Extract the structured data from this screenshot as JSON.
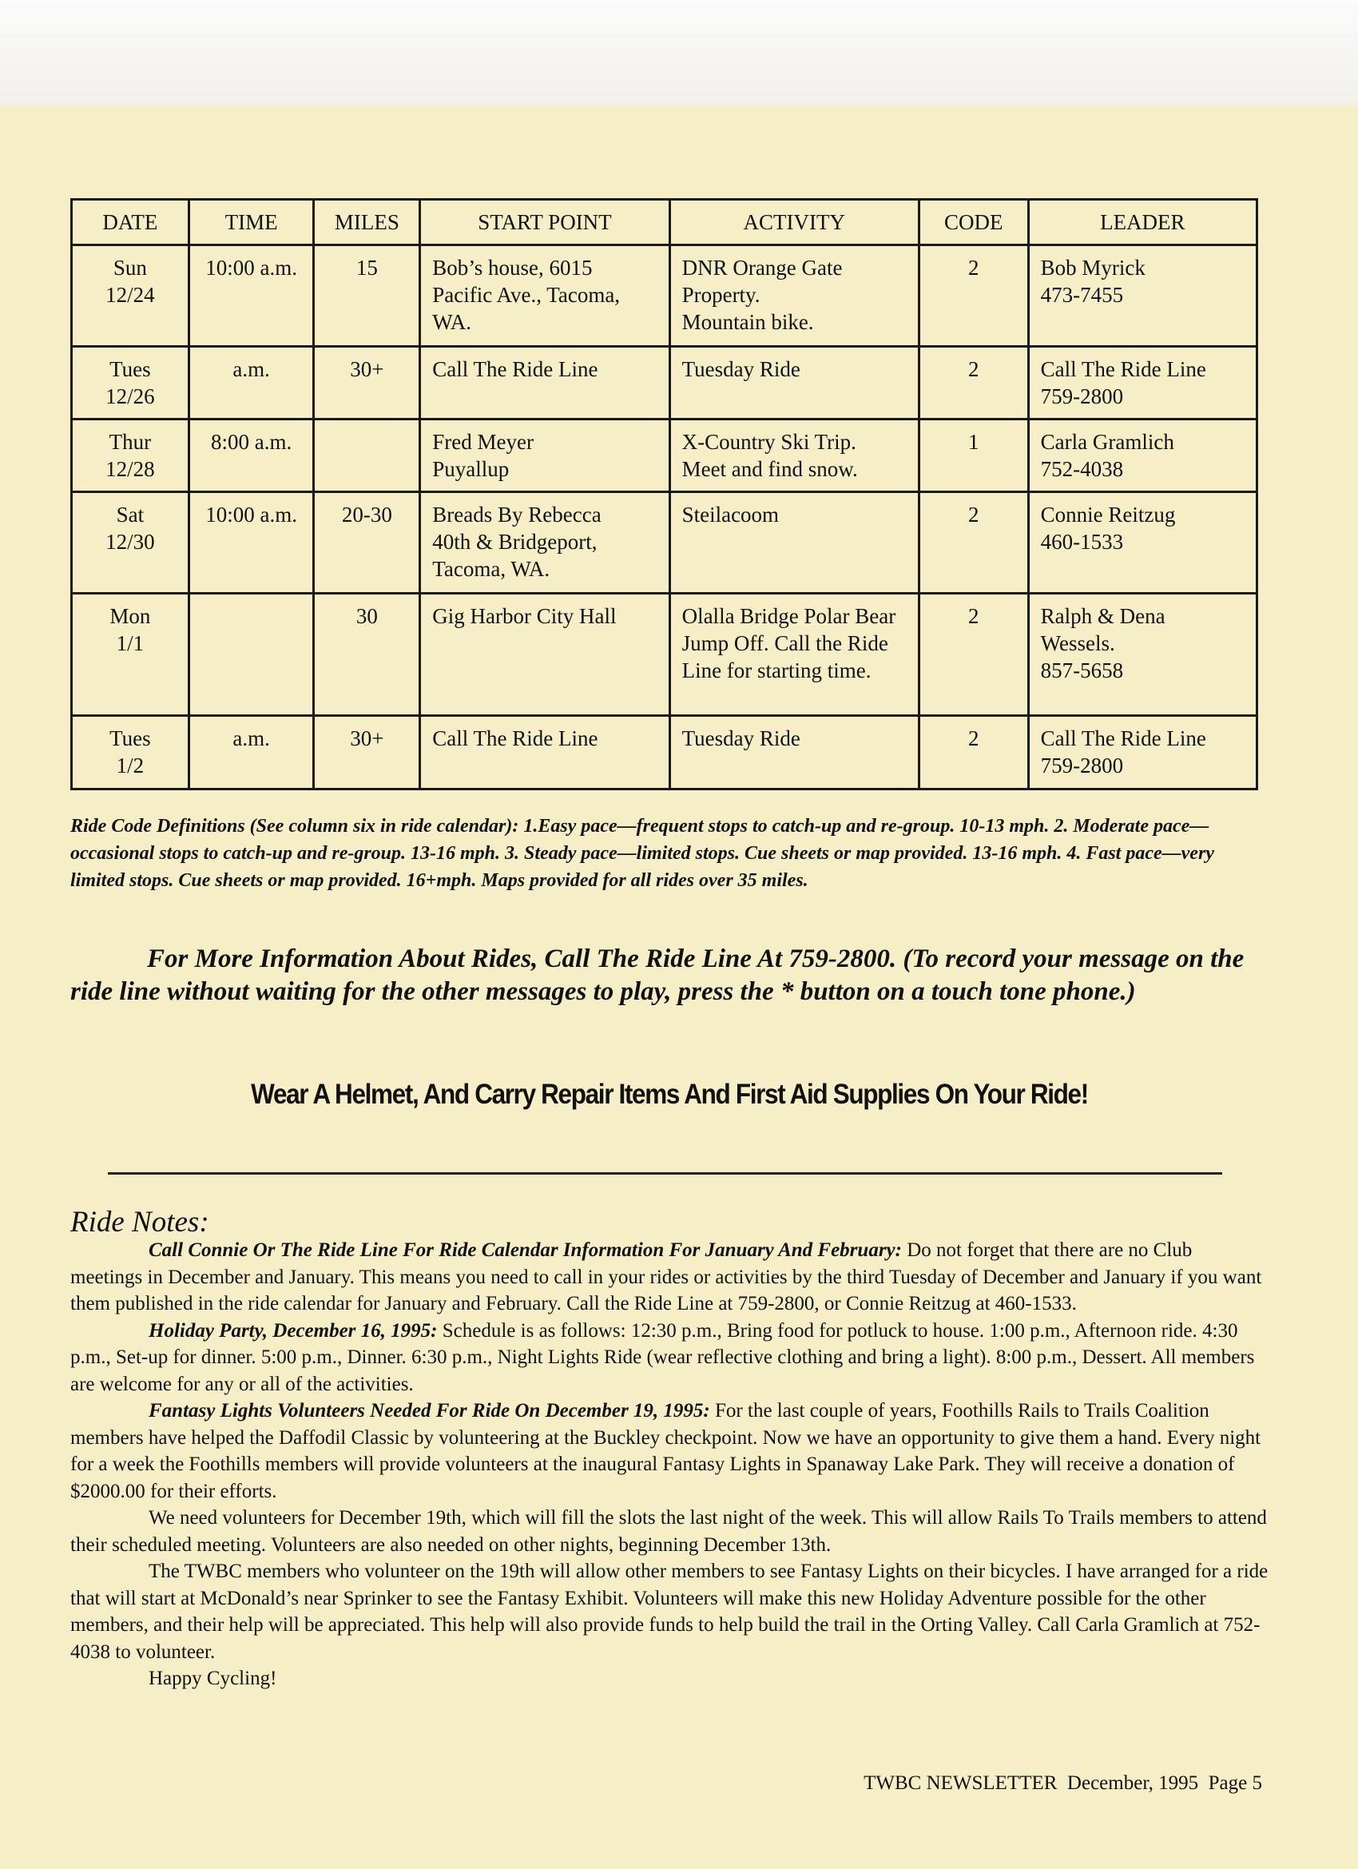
{
  "table": {
    "headers": [
      "DATE",
      "TIME",
      "MILES",
      "START POINT",
      "ACTIVITY",
      "CODE",
      "LEADER"
    ],
    "rows": [
      [
        "Sun\n12/24",
        "10:00 a.m.",
        "15",
        "Bob’s house, 6015 Pacific Ave., Tacoma, WA.",
        "DNR Orange Gate Property.\nMountain bike.",
        "2",
        "Bob Myrick\n473-7455"
      ],
      [
        "Tues\n12/26",
        "a.m.",
        "30+",
        "Call The Ride Line",
        "Tuesday Ride",
        "2",
        "Call The Ride Line\n759-2800"
      ],
      [
        "Thur\n12/28",
        "8:00 a.m.",
        "",
        "Fred Meyer\nPuyallup",
        "X-Country Ski Trip.\nMeet and find snow.",
        "1",
        "Carla Gramlich\n752-4038"
      ],
      [
        "Sat\n12/30",
        "10:00 a.m.",
        "20-30",
        "Breads By Rebecca\n40th & Bridgeport,\nTacoma, WA.",
        "Steilacoom",
        "2",
        "Connie Reitzug\n460-1533"
      ],
      [
        "Mon\n1/1",
        "",
        "30",
        "Gig Harbor City Hall",
        "Olalla Bridge Polar Bear Jump Off. Call the Ride Line for starting time.",
        "2",
        "Ralph & Dena\nWessels.\n857-5658"
      ],
      [
        "Tues\n1/2",
        "a.m.",
        "30+",
        "Call The Ride Line",
        "Tuesday Ride",
        "2",
        "Call The Ride Line\n759-2800"
      ]
    ]
  },
  "ride_codes": "Ride Code Definitions (See column six in ride calendar): 1.Easy pace—frequent stops to catch-up and re-group. 10-13 mph. 2. Moderate pace—occasional stops to catch-up and re-group. 13-16 mph. 3. Steady pace—limited stops. Cue sheets or map provided. 13-16 mph. 4. Fast pace—very limited stops. Cue sheets or map provided. 16+mph. Maps provided for all rides over 35 miles.",
  "info": "For More Information About Rides, Call The Ride Line At 759-2800. (To record your message on the ride line without waiting for the other messages to play, press the * button on a touch tone phone.)",
  "helmet": "Wear A Helmet, And Carry Repair Items And First Aid Supplies On Your Ride!",
  "notes": {
    "heading": "Ride Notes:",
    "paragraphs": [
      {
        "lead": "Call Connie Or The Ride Line For Ride Calendar Information For January And February:",
        "text": " Do not forget that there are no Club meetings in December and January. This means you need to call in your rides or activities by the third Tuesday of December and January if you want them published in the ride calendar for January and February. Call the Ride Line at 759-2800, or Connie Reitzug at 460-1533."
      },
      {
        "lead": "Holiday Party, December 16, 1995:",
        "text": " Schedule is as follows: 12:30 p.m., Bring food for potluck to house. 1:00 p.m., Afternoon ride. 4:30 p.m., Set-up for dinner. 5:00 p.m., Dinner. 6:30 p.m., Night Lights Ride (wear reflective clothing and bring a light). 8:00 p.m., Dessert. All members are welcome for any or all of the activities."
      },
      {
        "lead": "Fantasy Lights Volunteers Needed For Ride On December 19, 1995:",
        "text": " For the last couple of years, Foothills Rails to Trails Coalition members have helped the Daffodil Classic by volunteering at the Buckley checkpoint. Now we have an opportunity to give them a hand. Every night for a week the Foothills members will provide volunteers at the inaugural Fantasy Lights in Spanaway Lake Park. They will receive a donation of $2000.00 for their efforts."
      },
      {
        "lead": "",
        "text": "We need volunteers for December 19th, which will fill the slots the last night of the week. This will allow Rails To Trails members to attend their scheduled meeting. Volunteers are also needed on other nights, beginning December 13th."
      },
      {
        "lead": "",
        "text": "The TWBC members who volunteer on the 19th will allow other members to see Fantasy Lights on their bicycles. I have arranged for a ride that will start at McDonald’s near Sprinker to see the Fantasy Exhibit. Volunteers will make this new Holiday Adventure possible for the other members, and their help will be appreciated. This help will also provide funds to help build the trail in the Orting Valley. Call Carla Gramlich at 752-4038 to volunteer."
      },
      {
        "lead": "",
        "text": "Happy Cycling!"
      }
    ]
  },
  "footer": "TWBC NEWSLETTER  December, 1995  Page 5"
}
